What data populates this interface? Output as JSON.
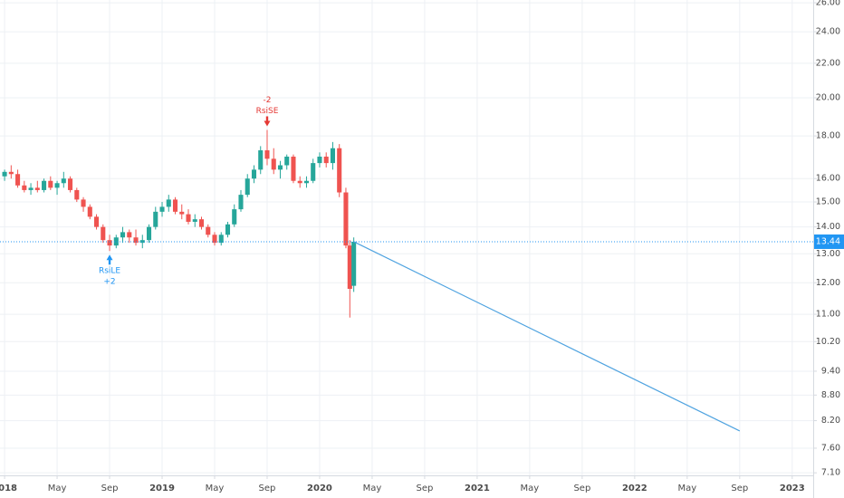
{
  "chart_data": {
    "type": "candlestick",
    "log_scale": true,
    "grid": true,
    "up_color": "#26a69a",
    "down_color": "#ef5350",
    "xlim": [
      -0.35,
      61.6
    ],
    "ylim": [
      7.05,
      26.2
    ],
    "xticks": [
      {
        "value": 0,
        "label": "2018"
      },
      {
        "value": 4,
        "label": "May"
      },
      {
        "value": 8,
        "label": "Sep"
      },
      {
        "value": 12,
        "label": "2019"
      },
      {
        "value": 16,
        "label": "May"
      },
      {
        "value": 20,
        "label": "Sep"
      },
      {
        "value": 24,
        "label": "2020"
      },
      {
        "value": 28,
        "label": "May"
      },
      {
        "value": 32,
        "label": "Sep"
      },
      {
        "value": 36,
        "label": "2021"
      },
      {
        "value": 40,
        "label": "May"
      },
      {
        "value": 44,
        "label": "Sep"
      },
      {
        "value": 48,
        "label": "2022"
      },
      {
        "value": 52,
        "label": "May"
      },
      {
        "value": 56,
        "label": "Sep"
      },
      {
        "value": 60,
        "label": "2023"
      }
    ],
    "yticks": [
      {
        "value": 26,
        "label": "26.00"
      },
      {
        "value": 24,
        "label": "24.00"
      },
      {
        "value": 22,
        "label": "22.00"
      },
      {
        "value": 20,
        "label": "20.00"
      },
      {
        "value": 18,
        "label": "18.00"
      },
      {
        "value": 16,
        "label": "16.00"
      },
      {
        "value": 15,
        "label": "15.00"
      },
      {
        "value": 14,
        "label": "14.00"
      },
      {
        "value": 13,
        "label": "13.00"
      },
      {
        "value": 12,
        "label": "12.00"
      },
      {
        "value": 11,
        "label": "11.00"
      },
      {
        "value": 10.2,
        "label": "10.20"
      },
      {
        "value": 9.4,
        "label": "9.40"
      },
      {
        "value": 8.8,
        "label": "8.80"
      },
      {
        "value": 8.2,
        "label": "8.20"
      },
      {
        "value": 7.6,
        "label": "7.60"
      },
      {
        "value": 7.1,
        "label": "7.10"
      }
    ],
    "x": [
      0,
      0.5,
      1,
      1.5,
      2,
      2.5,
      3,
      3.5,
      4,
      4.5,
      5,
      5.5,
      6,
      6.5,
      7,
      7.5,
      8,
      8.5,
      9,
      9.5,
      10,
      10.5,
      11,
      11.5,
      12,
      12.5,
      13,
      13.5,
      14,
      14.5,
      15,
      15.5,
      16,
      16.5,
      17,
      17.5,
      18,
      18.5,
      19,
      19.5,
      20,
      20.5,
      21,
      21.5,
      22,
      22.5,
      23,
      23.5,
      24,
      24.5,
      25,
      25.5,
      26,
      26.3,
      26.6
    ],
    "open": [
      16.1,
      16.3,
      16.2,
      15.7,
      15.5,
      15.6,
      15.5,
      15.9,
      15.6,
      15.8,
      16.0,
      15.5,
      15.1,
      14.8,
      14.4,
      14.0,
      13.5,
      13.3,
      13.6,
      13.8,
      13.6,
      13.4,
      13.5,
      14.0,
      14.6,
      14.8,
      15.1,
      14.6,
      14.5,
      14.2,
      14.3,
      14.0,
      13.7,
      13.4,
      13.7,
      14.1,
      14.7,
      15.3,
      16.0,
      16.4,
      17.3,
      16.9,
      16.4,
      16.6,
      17.0,
      15.9,
      15.8,
      15.9,
      16.7,
      17.0,
      16.7,
      17.4,
      15.4,
      13.3,
      11.9
    ],
    "high": [
      16.4,
      16.6,
      16.4,
      15.9,
      15.8,
      15.9,
      16.0,
      16.1,
      15.9,
      16.3,
      16.1,
      15.6,
      15.2,
      14.9,
      14.5,
      14.1,
      13.7,
      13.7,
      14.0,
      13.9,
      13.9,
      13.7,
      14.1,
      14.8,
      15.0,
      15.3,
      15.2,
      14.9,
      14.7,
      14.5,
      14.4,
      14.1,
      13.8,
      13.8,
      14.2,
      14.9,
      15.5,
      16.2,
      16.6,
      17.5,
      18.3,
      17.4,
      16.8,
      17.1,
      17.1,
      16.1,
      16.1,
      16.9,
      17.2,
      17.2,
      17.7,
      17.6,
      15.6,
      13.5,
      13.6
    ],
    "low": [
      15.9,
      16.0,
      15.6,
      15.4,
      15.3,
      15.4,
      15.4,
      15.5,
      15.3,
      15.6,
      15.4,
      15.0,
      14.6,
      14.3,
      13.9,
      13.4,
      13.1,
      13.2,
      13.4,
      13.4,
      13.3,
      13.2,
      13.4,
      13.9,
      14.4,
      14.6,
      14.5,
      14.3,
      14.1,
      14.0,
      13.9,
      13.6,
      13.3,
      13.3,
      13.6,
      14.0,
      14.6,
      15.2,
      15.8,
      16.2,
      16.6,
      16.2,
      16.0,
      16.4,
      15.8,
      15.6,
      15.6,
      15.8,
      16.5,
      16.5,
      16.4,
      15.2,
      13.2,
      10.9,
      11.7
    ],
    "close": [
      16.3,
      16.2,
      15.7,
      15.5,
      15.6,
      15.5,
      15.9,
      15.6,
      15.8,
      16.0,
      15.5,
      15.1,
      14.8,
      14.4,
      14.0,
      13.5,
      13.3,
      13.6,
      13.8,
      13.6,
      13.4,
      13.5,
      14.0,
      14.6,
      14.8,
      15.1,
      14.6,
      14.5,
      14.2,
      14.3,
      14.0,
      13.7,
      13.4,
      13.7,
      14.1,
      14.7,
      15.3,
      16.0,
      16.4,
      17.3,
      16.9,
      16.4,
      16.6,
      17.0,
      15.9,
      15.8,
      15.9,
      16.7,
      17.0,
      16.7,
      17.4,
      15.4,
      13.3,
      11.8,
      13.44
    ],
    "last_price": 13.44,
    "price_line_color": "#2196f3",
    "signals": [
      {
        "name": "RsiSE",
        "qty": "-2",
        "x": 20,
        "direction": "down",
        "color": "#e53935"
      },
      {
        "name": "RsiLE",
        "qty": "+2",
        "x": 8,
        "direction": "up",
        "color": "#2196f3"
      }
    ],
    "projection": {
      "x": [
        26.6,
        56
      ],
      "values": [
        13.44,
        7.97
      ],
      "color": "#4fa3e0"
    }
  }
}
